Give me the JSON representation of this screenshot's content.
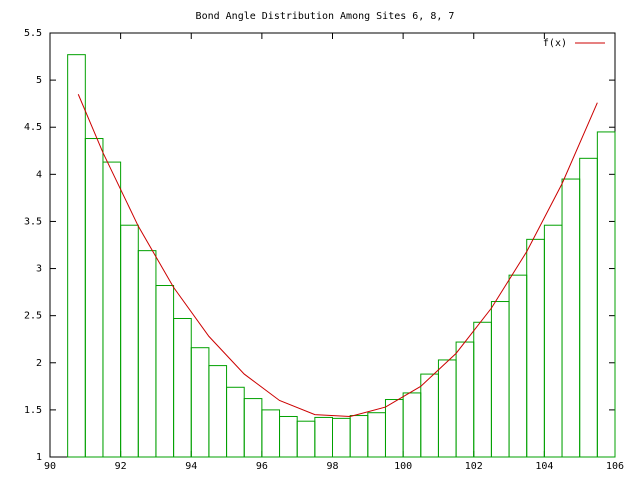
{
  "chart_data": {
    "type": "histogram",
    "title": "Bond Angle Distribution Among Sites 6, 8, 7",
    "bins": [
      90.5,
      91,
      91.5,
      92,
      92.5,
      93,
      93.5,
      94,
      94.5,
      95,
      95.5,
      96,
      96.5,
      97,
      97.5,
      98,
      98.5,
      99,
      99.5,
      100,
      100.5,
      101,
      101.5,
      102,
      102.5,
      103,
      103.5,
      104,
      104.5,
      105,
      105.5,
      106
    ],
    "values": [
      5.27,
      4.38,
      4.13,
      3.46,
      3.19,
      2.82,
      2.47,
      2.16,
      1.97,
      1.74,
      1.62,
      1.5,
      1.43,
      1.38,
      1.42,
      1.41,
      1.44,
      1.47,
      1.61,
      1.68,
      1.88,
      2.03,
      2.22,
      2.43,
      2.65,
      2.93,
      3.31,
      3.46,
      3.95,
      4.17,
      4.45
    ],
    "color": "#00a000",
    "series": [
      {
        "name": "f(x)",
        "color": "#cc0000",
        "x": [
          90.8,
          91.5,
          92.5,
          93.5,
          94.5,
          95.5,
          96.5,
          97.5,
          98.5,
          99.5,
          100.5,
          101.5,
          102.5,
          103.5,
          104.5,
          105.5
        ],
        "values": [
          4.85,
          4.23,
          3.45,
          2.8,
          2.28,
          1.88,
          1.6,
          1.45,
          1.43,
          1.53,
          1.75,
          2.1,
          2.58,
          3.18,
          3.9,
          4.76
        ]
      }
    ],
    "xlim": [
      90,
      106
    ],
    "xticks": [
      90,
      92,
      94,
      96,
      98,
      100,
      102,
      104,
      106
    ],
    "ylim": [
      1,
      5.5
    ],
    "yticks": [
      1,
      1.5,
      2,
      2.5,
      3,
      3.5,
      4,
      4.5,
      5,
      5.5
    ],
    "legend": "top-right"
  }
}
